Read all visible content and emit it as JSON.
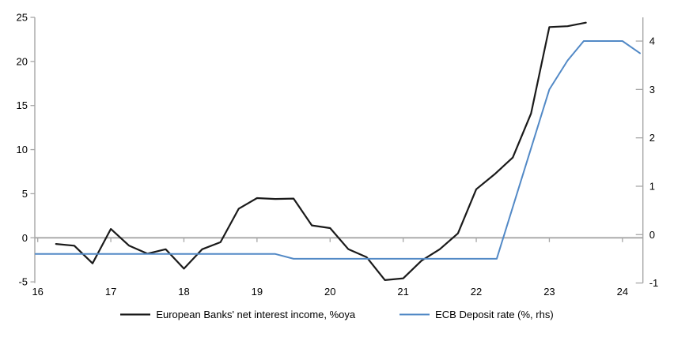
{
  "page": {
    "background": "#ffffff",
    "text_color": "#000000",
    "axis_color": "#a6a6a6"
  },
  "chart_data": {
    "type": "line",
    "title": "",
    "grid": "zero-line-only",
    "legend_position": "bottom-center",
    "x_axis": {
      "tick_labels": [
        "16",
        "17",
        "18",
        "19",
        "20",
        "21",
        "22",
        "23",
        "24"
      ],
      "tick_values": [
        16,
        17,
        18,
        19,
        20,
        21,
        22,
        23,
        24
      ],
      "range": [
        15.96,
        24.28
      ]
    },
    "left_axis": {
      "tick_labels": [
        "25",
        "20",
        "15",
        "10",
        "5",
        "0",
        "-5"
      ],
      "tick_values": [
        25,
        20,
        15,
        10,
        5,
        0,
        -5
      ],
      "range": [
        -5.13,
        25.0
      ]
    },
    "right_axis": {
      "tick_labels": [
        "4",
        "3",
        "2",
        "1",
        "0",
        "-1"
      ],
      "tick_values": [
        4,
        3,
        2,
        1,
        0,
        -1
      ],
      "range": [
        -1.0,
        4.49
      ]
    },
    "zero_line": {
      "axis": "left",
      "value": 0,
      "color": "#a6a6a6"
    },
    "series": [
      {
        "name": "European Banks' net interest income, %oya",
        "axis": "left",
        "color": "#1a1a1a",
        "points": [
          [
            16.25,
            -0.7
          ],
          [
            16.5,
            -0.9
          ],
          [
            16.75,
            -2.9
          ],
          [
            17.0,
            1.0
          ],
          [
            17.25,
            -0.9
          ],
          [
            17.5,
            -1.8
          ],
          [
            17.75,
            -1.3
          ],
          [
            18.0,
            -3.5
          ],
          [
            18.25,
            -1.3
          ],
          [
            18.5,
            -0.5
          ],
          [
            18.75,
            3.3
          ],
          [
            19.0,
            4.5
          ],
          [
            19.25,
            4.4
          ],
          [
            19.5,
            4.45
          ],
          [
            19.75,
            1.4
          ],
          [
            20.0,
            1.1
          ],
          [
            20.25,
            -1.3
          ],
          [
            20.5,
            -2.2
          ],
          [
            20.75,
            -4.8
          ],
          [
            21.0,
            -4.6
          ],
          [
            21.25,
            -2.6
          ],
          [
            21.5,
            -1.3
          ],
          [
            21.75,
            0.5
          ],
          [
            22.0,
            5.5
          ],
          [
            22.25,
            7.2
          ],
          [
            22.5,
            9.1
          ],
          [
            22.75,
            14.1
          ],
          [
            23.0,
            23.9
          ],
          [
            23.25,
            24.0
          ],
          [
            23.5,
            24.4
          ]
        ]
      },
      {
        "name": "ECB Deposit rate (%, rhs)",
        "axis": "right",
        "color": "#5289c6",
        "points": [
          [
            15.97,
            -0.4
          ],
          [
            19.25,
            -0.4
          ],
          [
            19.5,
            -0.5
          ],
          [
            22.28,
            -0.5
          ],
          [
            23.0,
            3.0
          ],
          [
            23.25,
            3.6
          ],
          [
            23.47,
            4.0
          ],
          [
            24.0,
            4.0
          ],
          [
            24.24,
            3.75
          ]
        ]
      }
    ]
  }
}
